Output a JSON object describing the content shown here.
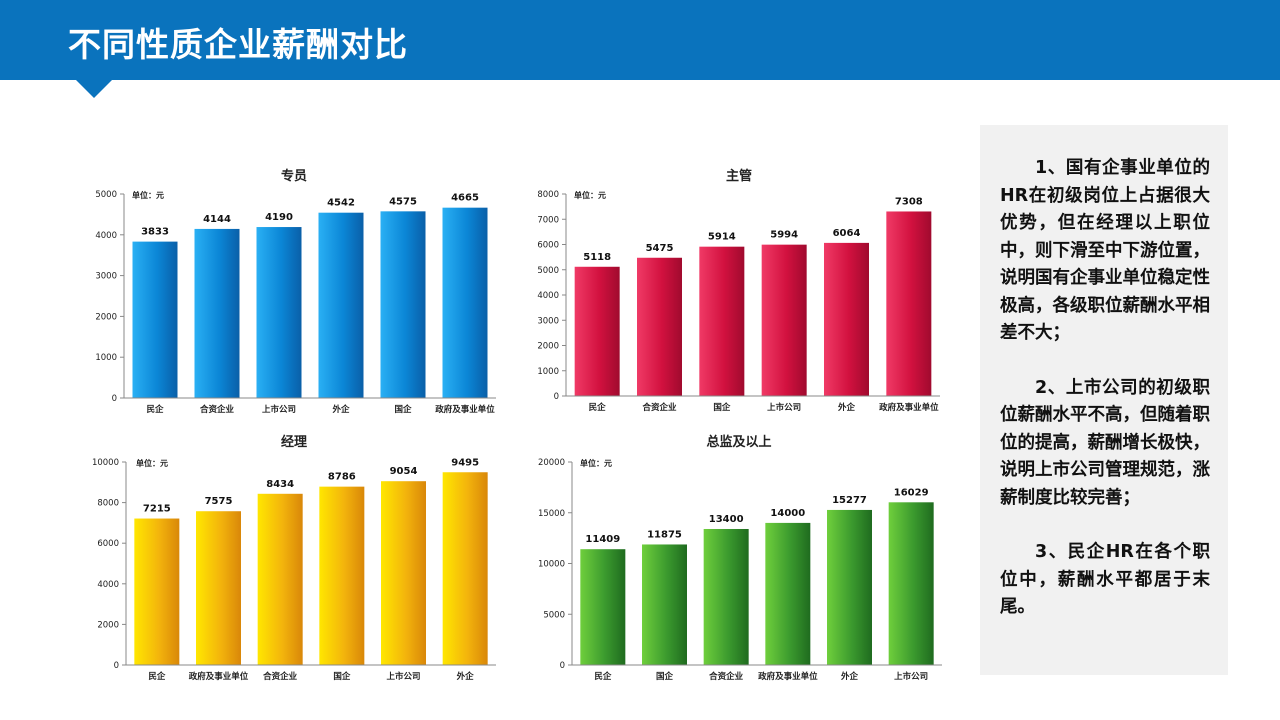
{
  "header": {
    "title": "不同性质企业薪酬对比"
  },
  "chart_data": [
    {
      "type": "bar",
      "title": "专员",
      "unit_label": "单位：元",
      "categories": [
        "民企",
        "合资企业",
        "上市公司",
        "外企",
        "国企",
        "政府及事业单位"
      ],
      "values": [
        3833,
        4144,
        4190,
        4542,
        4575,
        4665
      ],
      "ylim": [
        0,
        5000
      ],
      "yticks": [
        0,
        1000,
        2000,
        3000,
        4000,
        5000
      ],
      "color": "#0b86d6",
      "grid": false,
      "legend": "none"
    },
    {
      "type": "bar",
      "title": "主管",
      "unit_label": "单位：元",
      "categories": [
        "民企",
        "合资企业",
        "国企",
        "上市公司",
        "外企",
        "政府及事业单位"
      ],
      "values": [
        5118,
        5475,
        5914,
        5994,
        6064,
        7308
      ],
      "ylim": [
        0,
        8000
      ],
      "yticks": [
        0,
        1000,
        2000,
        3000,
        4000,
        5000,
        6000,
        7000,
        8000
      ],
      "color": "#d2113f",
      "grid": false,
      "legend": "none"
    },
    {
      "type": "bar",
      "title": "经理",
      "unit_label": "单位：元",
      "categories": [
        "民企",
        "政府及事业单位",
        "合资企业",
        "国企",
        "上市公司",
        "外企"
      ],
      "values": [
        7215,
        7575,
        8434,
        8786,
        9054,
        9495
      ],
      "ylim": [
        0,
        10000
      ],
      "yticks": [
        0,
        2000,
        4000,
        6000,
        8000,
        10000
      ],
      "color": "#f3b40c",
      "grid": false,
      "legend": "none"
    },
    {
      "type": "bar",
      "title": "总监及以上",
      "unit_label": "单位：元",
      "categories": [
        "民企",
        "国企",
        "合资企业",
        "政府及事业单位",
        "外企",
        "上市公司"
      ],
      "values": [
        11409,
        11875,
        13400,
        14000,
        15277,
        16029
      ],
      "ylim": [
        0,
        20000
      ],
      "yticks": [
        0,
        5000,
        10000,
        15000,
        20000
      ],
      "color": "#3b9a2e",
      "grid": false,
      "legend": "none"
    }
  ],
  "notes": [
    "1、国有企事业单位的HR在初级岗位上占据很大优势，但在经理以上职位中，则下滑至中下游位置，说明国有企事业单位稳定性极高，各级职位薪酬水平相差不大；",
    "2、上市公司的初级职位薪酬水平不高，但随着职位的提高，薪酬增长极快，说明上市公司管理规范，涨薪制度比较完善；",
    "3、民企HR在各个职位中，薪酬水平都居于末尾。"
  ]
}
